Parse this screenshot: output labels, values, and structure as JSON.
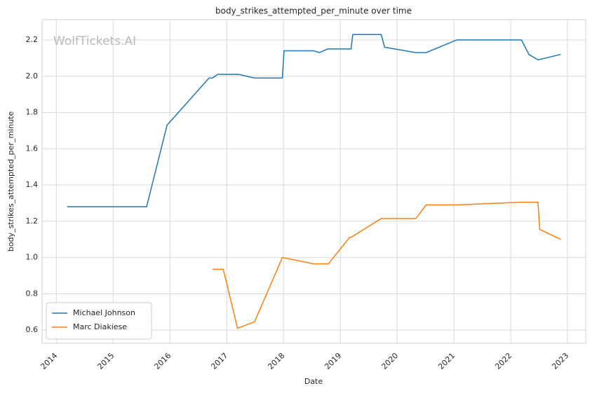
{
  "chart_data": {
    "type": "line",
    "title": "body_strikes_attempted_per_minute over time",
    "watermark": "WolfTickets.AI",
    "x_label": "Date",
    "y_label": "body_strikes_attempted_per_minute",
    "xlim": [
      2013.75,
      2023.32
    ],
    "xticks": [
      2014,
      2015,
      2016,
      2017,
      2018,
      2019,
      2020,
      2021,
      2022,
      2023
    ],
    "ylim": [
      0.527,
      2.312
    ],
    "yticks": [
      0.6,
      0.8,
      {
        "value": 1.0,
        "label": "1.0"
      },
      1.2,
      1.4,
      1.6,
      1.8,
      {
        "value": 2.0,
        "label": "2.0"
      },
      2.2
    ],
    "grid": true,
    "legend": "lower left",
    "series": [
      {
        "name": "Michael Johnson",
        "color": "#1f77b4",
        "x": [
          2014.19,
          2015.17,
          2015.59,
          2015.95,
          2016.69,
          2016.75,
          2016.84,
          2017.21,
          2017.49,
          2017.98,
          2018.01,
          2018.53,
          2018.63,
          2018.78,
          2019.19,
          2019.22,
          2019.72,
          2019.78,
          2020.33,
          2020.51,
          2021.05,
          2022.19,
          2022.32,
          2022.48,
          2022.88
        ],
        "values": [
          1.28,
          1.28,
          1.28,
          1.73,
          1.99,
          1.99,
          2.01,
          2.01,
          1.99,
          1.99,
          2.14,
          2.14,
          2.13,
          2.15,
          2.15,
          2.23,
          2.23,
          2.16,
          2.13,
          2.13,
          2.2,
          2.2,
          2.12,
          2.09,
          2.12
        ]
      },
      {
        "name": "Marc Diakiese",
        "color": "#ff7f0e",
        "x": [
          2016.75,
          2016.94,
          2017.19,
          2017.49,
          2017.98,
          2018.53,
          2018.79,
          2019.16,
          2019.21,
          2019.72,
          2020.33,
          2020.51,
          2021.05,
          2022.19,
          2022.48,
          2022.51,
          2022.88
        ],
        "values": [
          0.935,
          0.935,
          0.61,
          0.645,
          1.0,
          0.965,
          0.965,
          1.11,
          1.115,
          1.215,
          1.215,
          1.29,
          1.29,
          1.305,
          1.305,
          1.155,
          1.1
        ]
      }
    ]
  }
}
